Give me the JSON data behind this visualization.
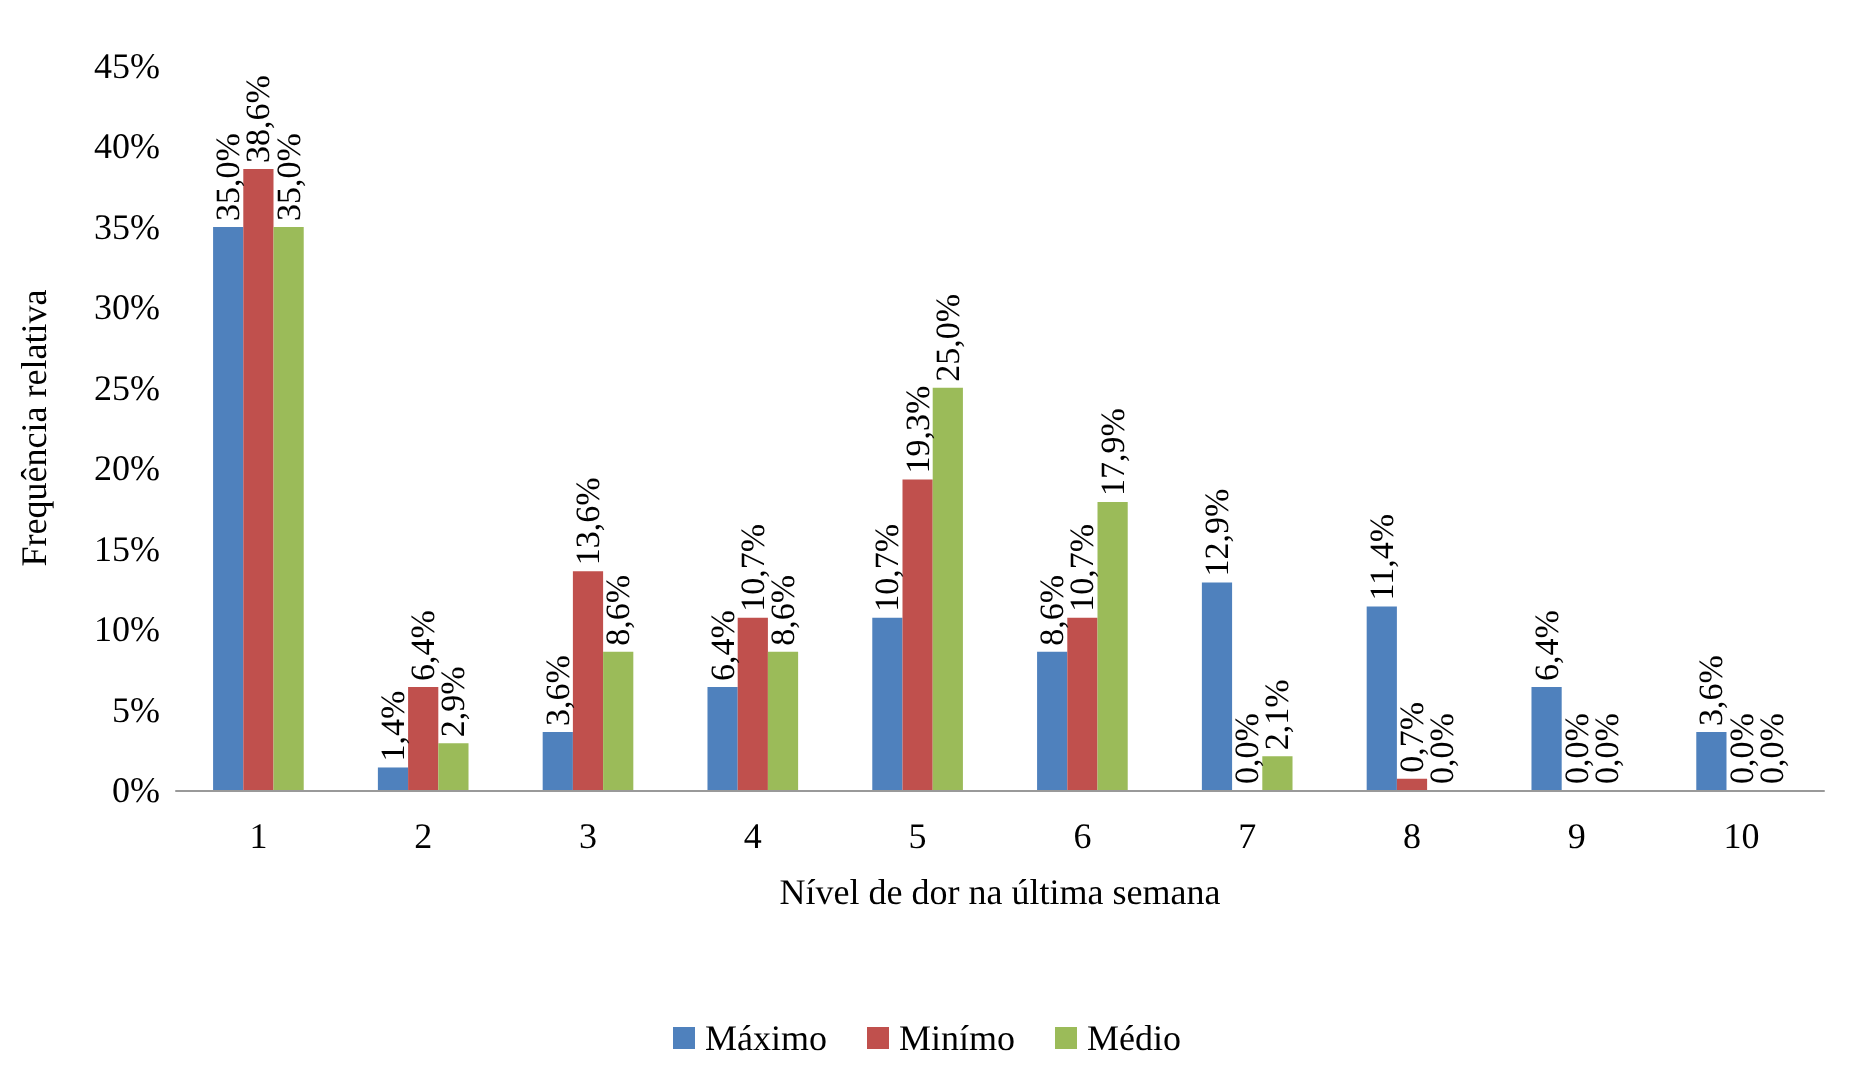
{
  "chart_data": {
    "type": "bar",
    "xlabel": "Nível de dor na última semana",
    "ylabel": "Frequência relativa",
    "categories": [
      "1",
      "2",
      "3",
      "4",
      "5",
      "6",
      "7",
      "8",
      "9",
      "10"
    ],
    "series": [
      {
        "name": "Máximo",
        "color": "#4f81bd",
        "values": [
          35.0,
          1.4,
          3.6,
          6.4,
          10.7,
          8.6,
          12.9,
          11.4,
          6.4,
          3.6
        ],
        "value_labels": [
          "35,0%",
          "1,4%",
          "3,6%",
          "6,4%",
          "10,7%",
          "8,6%",
          "12,9%",
          "11,4%",
          "6,4%",
          "3,6%"
        ]
      },
      {
        "name": "Minímo",
        "color": "#c0504d",
        "values": [
          38.6,
          6.4,
          13.6,
          10.7,
          19.3,
          10.7,
          0.0,
          0.7,
          0.0,
          0.0
        ],
        "value_labels": [
          "38,6%",
          "6,4%",
          "13,6%",
          "10,7%",
          "19,3%",
          "10,7%",
          "0,0%",
          "0,7%",
          "0,0%",
          "0,0%"
        ]
      },
      {
        "name": "Médio",
        "color": "#9bbb59",
        "values": [
          35.0,
          2.9,
          8.6,
          8.6,
          25.0,
          17.9,
          2.1,
          0.0,
          0.0,
          0.0
        ],
        "value_labels": [
          "35,0%",
          "2,9%",
          "8,6%",
          "8,6%",
          "25,0%",
          "17,9%",
          "2,1%",
          "0,0%",
          "0,0%",
          "0,0%"
        ]
      }
    ],
    "ylim": [
      0,
      45
    ],
    "yticks": [
      {
        "value": 0,
        "label": "0%"
      },
      {
        "value": 5,
        "label": "5%"
      },
      {
        "value": 10,
        "label": "10%"
      },
      {
        "value": 15,
        "label": "15%"
      },
      {
        "value": 20,
        "label": "20%"
      },
      {
        "value": 25,
        "label": "25%"
      },
      {
        "value": 30,
        "label": "30%"
      },
      {
        "value": 35,
        "label": "35%"
      },
      {
        "value": 40,
        "label": "40%"
      },
      {
        "value": 45,
        "label": "45%"
      }
    ],
    "grid": false,
    "legend": "bottom"
  }
}
